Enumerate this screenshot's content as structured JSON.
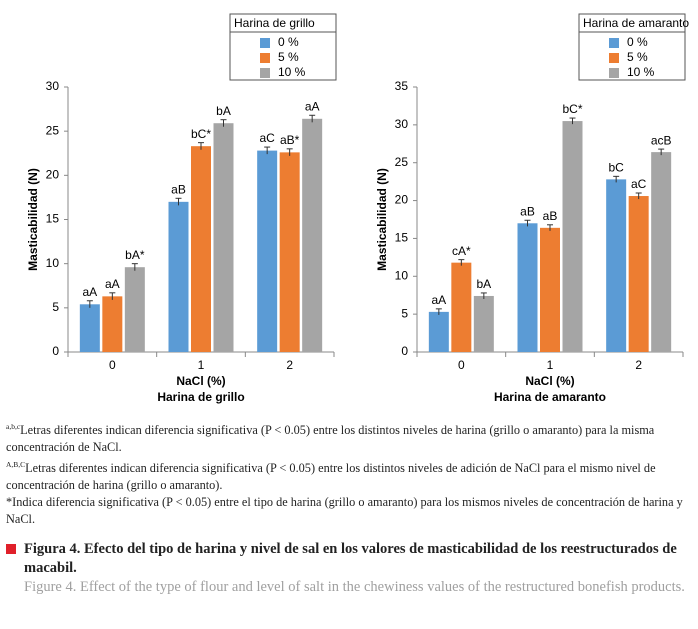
{
  "chart_data": [
    {
      "type": "bar",
      "ylabel": "Masticabilidad (N)",
      "xlabel": "NaCl (%)",
      "subtitle": "Harina de grillo",
      "legend_title": "Harina de grillo",
      "legend": "upper right",
      "categories": [
        "0",
        "1",
        "2"
      ],
      "ylim": [
        0,
        30
      ],
      "yticks": [
        0,
        5,
        10,
        15,
        20,
        25,
        30
      ],
      "series": [
        {
          "name": "0 %",
          "color": "#5b9bd5",
          "values": [
            5.4,
            17.0,
            22.8
          ],
          "errors": [
            0.4,
            0.4,
            0.4
          ],
          "letters": [
            "aA",
            "aB",
            "aC"
          ]
        },
        {
          "name": "5 %",
          "color": "#ed7d31",
          "values": [
            6.3,
            23.3,
            22.6
          ],
          "errors": [
            0.4,
            0.4,
            0.4
          ],
          "letters": [
            "aA",
            "bC*",
            "aB*"
          ]
        },
        {
          "name": "10 %",
          "color": "#a5a5a5",
          "values": [
            9.6,
            25.9,
            26.4
          ],
          "errors": [
            0.4,
            0.4,
            0.4
          ],
          "letters": [
            "bA*",
            "bA",
            "aA"
          ]
        }
      ]
    },
    {
      "type": "bar",
      "ylabel": "Masticabilidad (N)",
      "xlabel": "NaCl (%)",
      "subtitle": "Harina de amaranto",
      "legend_title": "Harina de amaranto",
      "legend": "upper right",
      "categories": [
        "0",
        "1",
        "2"
      ],
      "ylim": [
        0,
        35
      ],
      "yticks": [
        0,
        5,
        10,
        15,
        20,
        25,
        30,
        35
      ],
      "series": [
        {
          "name": "0 %",
          "color": "#5b9bd5",
          "values": [
            5.3,
            17.0,
            22.8
          ],
          "errors": [
            0.4,
            0.4,
            0.4
          ],
          "letters": [
            "aA",
            "aB",
            "bC"
          ]
        },
        {
          "name": "5 %",
          "color": "#ed7d31",
          "values": [
            11.8,
            16.4,
            20.6
          ],
          "errors": [
            0.4,
            0.4,
            0.4
          ],
          "letters": [
            "cA*",
            "aB",
            "aC"
          ]
        },
        {
          "name": "10 %",
          "color": "#a5a5a5",
          "values": [
            7.4,
            30.5,
            26.4
          ],
          "errors": [
            0.4,
            0.4,
            0.4
          ],
          "letters": [
            "bA",
            "bC*",
            "acB"
          ]
        }
      ]
    }
  ],
  "notes": [
    {
      "mark": "a,b,c",
      "text": "Letras diferentes indican diferencia significativa (P < 0.05) entre los distintos niveles de harina (grillo o amaranto) para la misma concentración de NaCl."
    },
    {
      "mark": "A,B,C",
      "text": "Letras diferentes indican diferencia significativa (P < 0.05)  entre los distintos niveles de adición de NaCl para el mismo nivel de concentración de harina (grillo o amaranto)."
    },
    {
      "mark": "*",
      "text": "Indica diferencia significativa (P < 0.05) entre el tipo de harina (grillo o amaranto) para los mismos niveles de concentración de harina y NaCl."
    }
  ],
  "caption": {
    "es": "Figura 4. Efecto del tipo de harina y nivel de sal en los valores de masticabilidad de los reestructurados de macabil.",
    "en": "Figure 4. Effect of the type of flour and level of salt in the chewiness values of the restructured bonefish products."
  }
}
